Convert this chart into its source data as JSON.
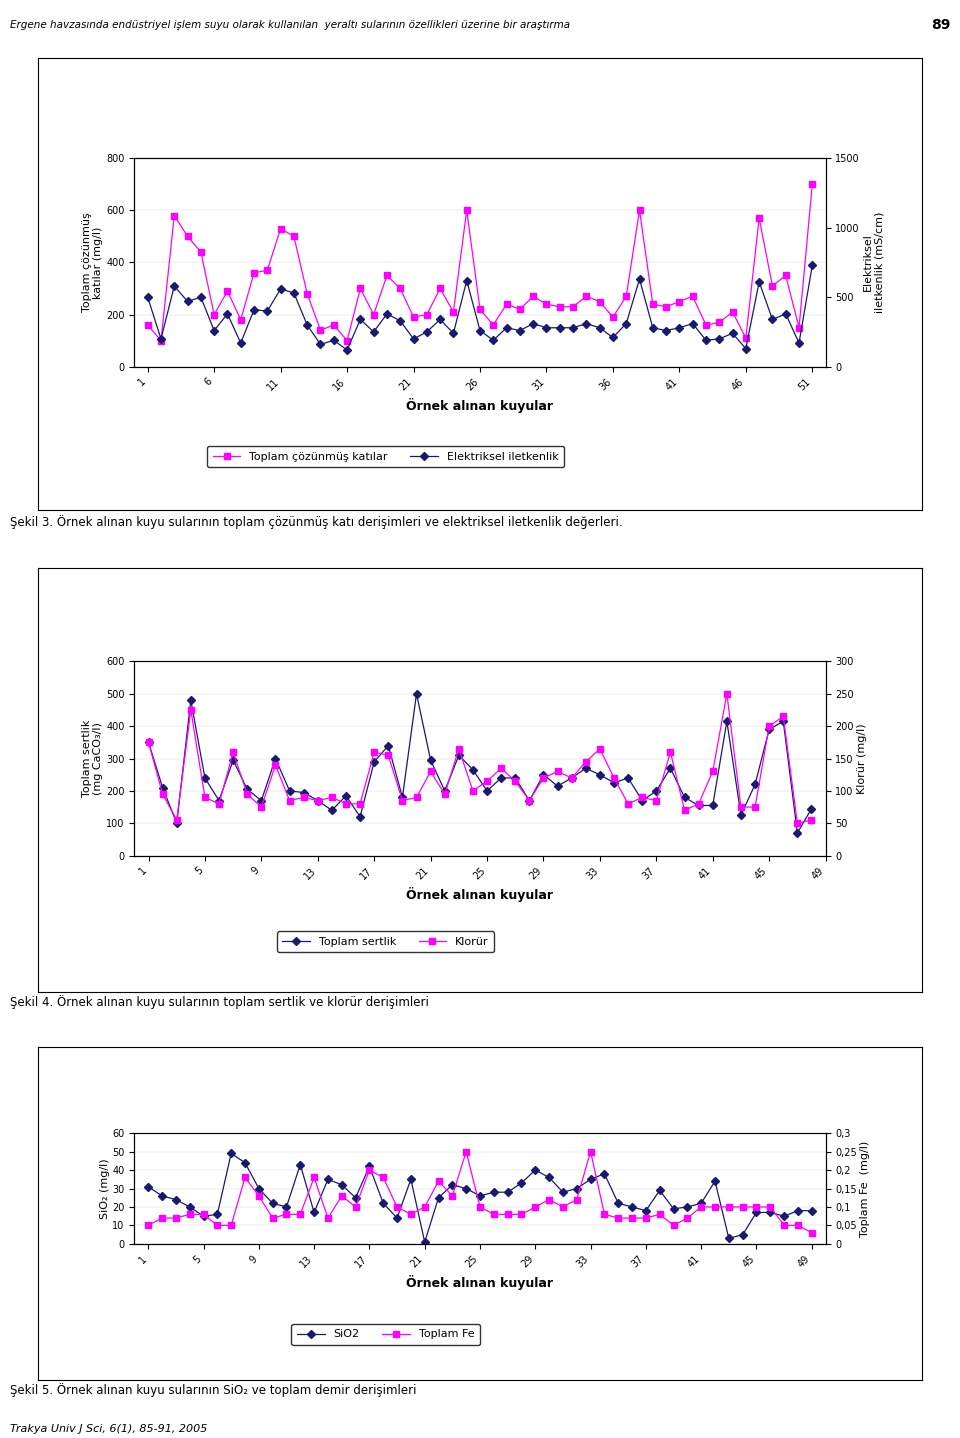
{
  "header": "Ergene havzasında endüstriyel işlem suyu olarak kullanılan  yeraltı sularının özellikleri üzerine bir araştırma",
  "page_num": "89",
  "chart1": {
    "x_ticks": [
      1,
      6,
      11,
      16,
      21,
      26,
      31,
      36,
      41,
      46,
      51
    ],
    "xlabel": "Örnek alınan kuyular",
    "ylabel_left": "Toplam çözünmüş\nkatılar (mg/l)",
    "ylabel_right": "Elektriksel\niletkenlik (mS/cm)",
    "ylim_left": [
      0,
      800
    ],
    "ylim_right": [
      0,
      1500
    ],
    "yticks_left": [
      0,
      200,
      400,
      600,
      800
    ],
    "yticks_right": [
      0,
      500,
      1000,
      1500
    ],
    "legend1": "Toplam çözünmüş katılar",
    "legend2": "Elektriksel iletkenlik",
    "tds": [
      160,
      100,
      580,
      500,
      440,
      200,
      290,
      180,
      360,
      370,
      530,
      500,
      280,
      140,
      160,
      100,
      300,
      200,
      350,
      300,
      190,
      200,
      300,
      210,
      600,
      220,
      160,
      240,
      220,
      270,
      240,
      230,
      230,
      270,
      250,
      190,
      270,
      600,
      240,
      230,
      250,
      270,
      160,
      170,
      210,
      110,
      570,
      310,
      350,
      150,
      700
    ],
    "ec": [
      500,
      200,
      580,
      470,
      500,
      260,
      380,
      170,
      410,
      400,
      560,
      530,
      300,
      160,
      190,
      120,
      340,
      250,
      380,
      330,
      200,
      250,
      340,
      240,
      620,
      260,
      190,
      280,
      260,
      310,
      280,
      280,
      280,
      310,
      280,
      210,
      310,
      630,
      280,
      260,
      280,
      310,
      190,
      200,
      240,
      130,
      610,
      340,
      380,
      170,
      730
    ]
  },
  "caption1": "Şekil 3. Örnek alınan kuyu sularının toplam çözünmüş katı derişimleri ve elektriksel iletkenlik değerleri.",
  "chart2": {
    "x_ticks": [
      1,
      5,
      9,
      13,
      17,
      21,
      25,
      29,
      33,
      37,
      41,
      45,
      49
    ],
    "xlabel": "Örnek alınan kuyular",
    "ylabel_left": "Toplam sertlik\n(mg CaCO₃/l)",
    "ylabel_right": "Klorür (mg/l)",
    "ylim_left": [
      0,
      600
    ],
    "ylim_right": [
      0,
      300
    ],
    "yticks_left": [
      0,
      100,
      200,
      300,
      400,
      500,
      600
    ],
    "yticks_right": [
      0,
      50,
      100,
      150,
      200,
      250,
      300
    ],
    "legend1": "Toplam sertlik",
    "legend2": "Klorür",
    "hardness": [
      350,
      210,
      100,
      480,
      240,
      170,
      295,
      205,
      170,
      300,
      200,
      195,
      170,
      140,
      185,
      120,
      290,
      340,
      180,
      500,
      295,
      200,
      310,
      265,
      200,
      240,
      240,
      170,
      250,
      215,
      240,
      270,
      250,
      225,
      240,
      170,
      200,
      270,
      180,
      155,
      155,
      415,
      125,
      220,
      390,
      415,
      70,
      145
    ],
    "chloride": [
      175,
      95,
      55,
      225,
      90,
      80,
      160,
      95,
      75,
      140,
      85,
      90,
      85,
      90,
      80,
      80,
      160,
      155,
      85,
      90,
      130,
      95,
      165,
      100,
      115,
      135,
      115,
      85,
      120,
      130,
      120,
      145,
      165,
      120,
      80,
      90,
      85,
      160,
      70,
      80,
      130,
      250,
      75,
      75,
      200,
      215,
      50,
      55
    ]
  },
  "caption2": "Şekil 4. Örnek alınan kuyu sularının toplam sertlik ve klorür derişimleri",
  "chart3": {
    "x_ticks": [
      1,
      5,
      9,
      13,
      17,
      21,
      25,
      29,
      33,
      37,
      41,
      45,
      49
    ],
    "xlabel": "Örnek alınan kuyular",
    "ylabel_left": "SiO₂ (mg/l)",
    "ylabel_right": "Toplam Fe  (mg/l)",
    "ylim_left": [
      0,
      60
    ],
    "ylim_right": [
      0,
      0.3
    ],
    "yticks_left": [
      0,
      10,
      20,
      30,
      40,
      50,
      60
    ],
    "yticks_right": [
      0,
      0.05,
      0.1,
      0.15,
      0.2,
      0.25,
      0.3
    ],
    "ytick_right_labels": [
      "0",
      "0,05",
      "0,1",
      "0,15",
      "0,2",
      "0,25",
      "0,3"
    ],
    "legend1": "SiO2",
    "legend2": "Toplam Fe",
    "sio2": [
      31,
      26,
      24,
      20,
      15,
      16,
      49,
      44,
      30,
      22,
      20,
      43,
      17,
      35,
      32,
      25,
      42,
      22,
      14,
      35,
      1,
      25,
      32,
      30,
      26,
      28,
      28,
      33,
      40,
      36,
      28,
      30,
      35,
      38,
      22,
      20,
      18,
      29,
      19,
      20,
      22,
      34,
      3,
      5,
      17,
      17,
      15,
      18,
      18
    ],
    "totalfe": [
      0.05,
      0.07,
      0.07,
      0.08,
      0.08,
      0.05,
      0.05,
      0.18,
      0.13,
      0.07,
      0.08,
      0.08,
      0.18,
      0.07,
      0.13,
      0.1,
      0.2,
      0.18,
      0.1,
      0.08,
      0.1,
      0.17,
      0.13,
      0.25,
      0.1,
      0.08,
      0.08,
      0.08,
      0.1,
      0.12,
      0.1,
      0.12,
      0.25,
      0.08,
      0.07,
      0.07,
      0.07,
      0.08,
      0.05,
      0.07,
      0.1,
      0.1,
      0.1,
      0.1,
      0.1,
      0.1,
      0.05,
      0.05,
      0.03
    ]
  },
  "caption3": "Şekil 5. Örnek alınan kuyu sularının SiO₂ ve toplam demir derişimleri",
  "footer": "Trakya Univ J Sci, 6(1), 85-91, 2005",
  "line_color_pink": "#FF00FF",
  "line_color_navy": "#191970",
  "background": "#FFFFFF"
}
